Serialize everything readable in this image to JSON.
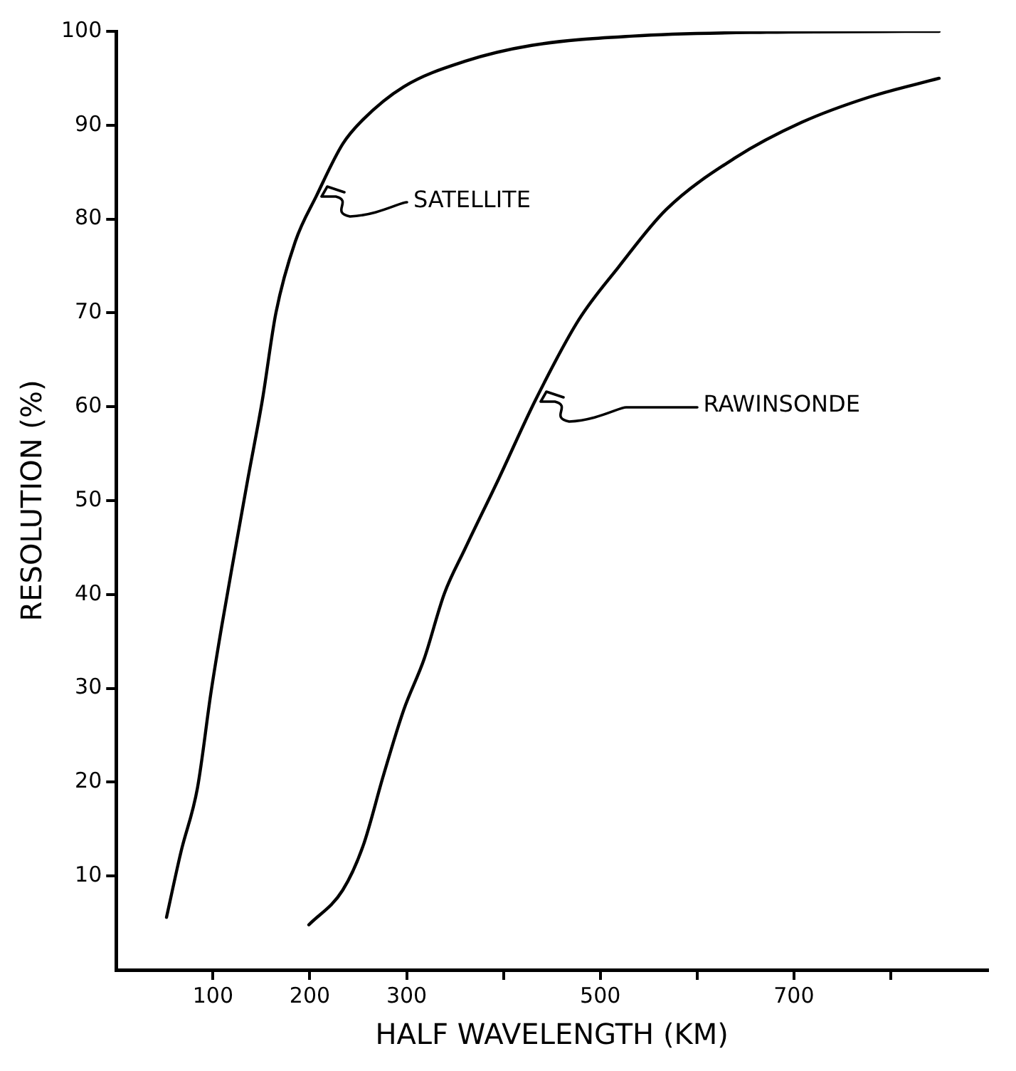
{
  "chart_data": {
    "type": "line",
    "xlabel": "HALF WAVELENGTH (KM)",
    "ylabel": "RESOLUTION (%)",
    "xlim": [
      0,
      900
    ],
    "ylim": [
      0,
      100
    ],
    "xticks": [
      100,
      200,
      300,
      {
        "value": 400,
        "label": null
      },
      500,
      {
        "value": 600,
        "label": null
      },
      700,
      {
        "value": 800,
        "label": null
      }
    ],
    "yticks": [
      10,
      20,
      30,
      40,
      50,
      60,
      70,
      80,
      90,
      100
    ],
    "legend": false,
    "marker": "none",
    "line_style": "solid",
    "series": [
      {
        "color": "#000000",
        "x": [
          52,
          67,
          84,
          98,
          109,
          123,
          136,
          151,
          165,
          185,
          207,
          234,
          255,
          297,
          360,
          429,
          534,
          672,
          850
        ],
        "values": [
          5.6,
          12.6,
          19.4,
          29.6,
          36.6,
          44.8,
          52.3,
          60.7,
          70,
          77.6,
          82.5,
          88,
          90.6,
          94.1,
          96.8,
          98.5,
          99.5,
          99.9,
          100
        ]
      },
      {
        "color": "#000000",
        "x": [
          199,
          234,
          255,
          276,
          297,
          318,
          339,
          360,
          395,
          433,
          478,
          519,
          568,
          639,
          708,
          778,
          850
        ],
        "values": [
          4.8,
          8.5,
          13.2,
          20.7,
          27.7,
          33.1,
          40.1,
          44.8,
          52.3,
          60.7,
          69.3,
          74.9,
          81,
          86.5,
          90.3,
          93,
          95
        ]
      }
    ],
    "annotations": [
      "SATELLITE",
      "RAWINSONDE"
    ]
  }
}
